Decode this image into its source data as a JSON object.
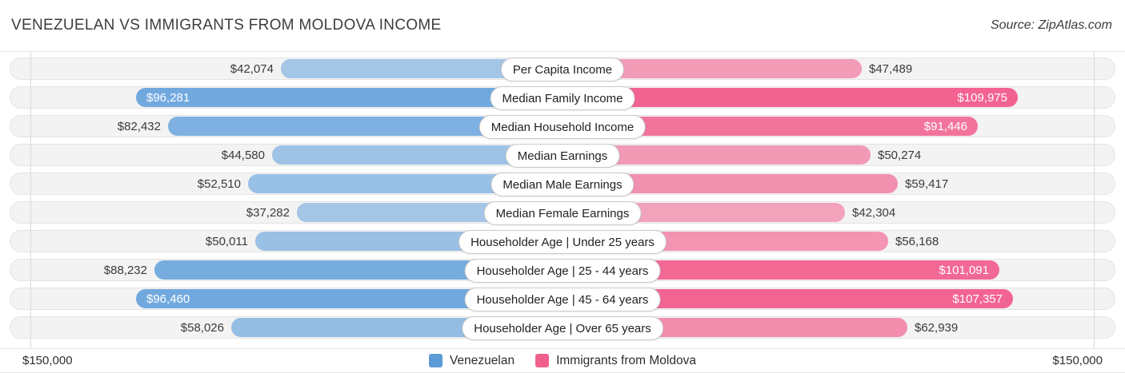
{
  "header": {
    "title": "VENEZUELAN VS IMMIGRANTS FROM MOLDOVA INCOME",
    "source": "Source: ZipAtlas.com"
  },
  "footer": {
    "axis_left_label": "$150,000",
    "axis_right_label": "$150,000"
  },
  "legend": [
    {
      "label": "Venezuelan",
      "color": "#5c9bd5"
    },
    {
      "label": "Immigrants from Moldova",
      "color": "#f0608c"
    }
  ],
  "chart_data": {
    "type": "bar",
    "orientation": "horizontal-diverging",
    "title": "VENEZUELAN VS IMMIGRANTS FROM MOLDOVA INCOME",
    "axis_max": 150000,
    "axis_max_label": "$150,000",
    "grid": "edge-lines-only",
    "legend_position": "bottom-center",
    "categories": [
      "Per Capita Income",
      "Median Family Income",
      "Median Household Income",
      "Median Earnings",
      "Median Male Earnings",
      "Median Female Earnings",
      "Householder Age | Under 25 years",
      "Householder Age | 25 - 44 years",
      "Householder Age | 45 - 64 years",
      "Householder Age | Over 65 years"
    ],
    "series": [
      {
        "name": "Venezuelan",
        "side": "left",
        "color": "#4b93d8",
        "values": [
          42074,
          96281,
          82432,
          44580,
          52510,
          37282,
          50011,
          88232,
          96460,
          58026
        ],
        "display": [
          "$42,074",
          "$96,281",
          "$82,432",
          "$44,580",
          "$52,510",
          "$37,282",
          "$50,011",
          "$88,232",
          "$96,460",
          "$58,026"
        ]
      },
      {
        "name": "Immigrants from Moldova",
        "side": "right",
        "color": "#f2497f",
        "values": [
          47489,
          109975,
          91446,
          50274,
          59417,
          42304,
          56168,
          101091,
          107357,
          62939
        ],
        "display": [
          "$47,489",
          "$109,975",
          "$91,446",
          "$50,274",
          "$59,417",
          "$42,304",
          "$56,168",
          "$101,091",
          "$107,357",
          "$62,939"
        ]
      }
    ]
  }
}
